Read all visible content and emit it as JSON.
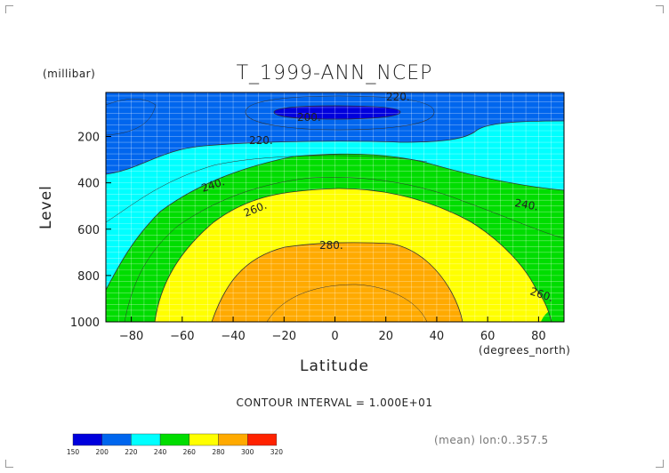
{
  "chart_data": {
    "type": "heatmap",
    "subtype": "filled-contour",
    "title": "T_1999-ANN_NCEP",
    "xlabel": "Latitude",
    "x_unit_label": "(degrees_north)",
    "ylabel": "Level",
    "y_unit_label": "(millibar)",
    "xlim": [
      -90,
      90
    ],
    "ylim": [
      1000,
      10
    ],
    "x_ticks": [
      -80,
      -60,
      -40,
      -20,
      0,
      20,
      40,
      60,
      80
    ],
    "y_ticks": [
      200,
      400,
      600,
      800,
      1000
    ],
    "grid": true,
    "contour_interval_text": "CONTOUR INTERVAL = 1.000E+01",
    "contour_labels": [
      "220.",
      "200.",
      "220.",
      "240.",
      "260.",
      "280.",
      "240.",
      "260."
    ],
    "colorbar": {
      "levels": [
        "150",
        "200",
        "220",
        "240",
        "260",
        "280",
        "300",
        "320"
      ],
      "colors": [
        "#0000dd",
        "#0066ee",
        "#00ffff",
        "#00dd00",
        "#ffff00",
        "#ffaa00",
        "#ff2200"
      ]
    },
    "footer_note": "(mean) lon:0..357.5"
  }
}
